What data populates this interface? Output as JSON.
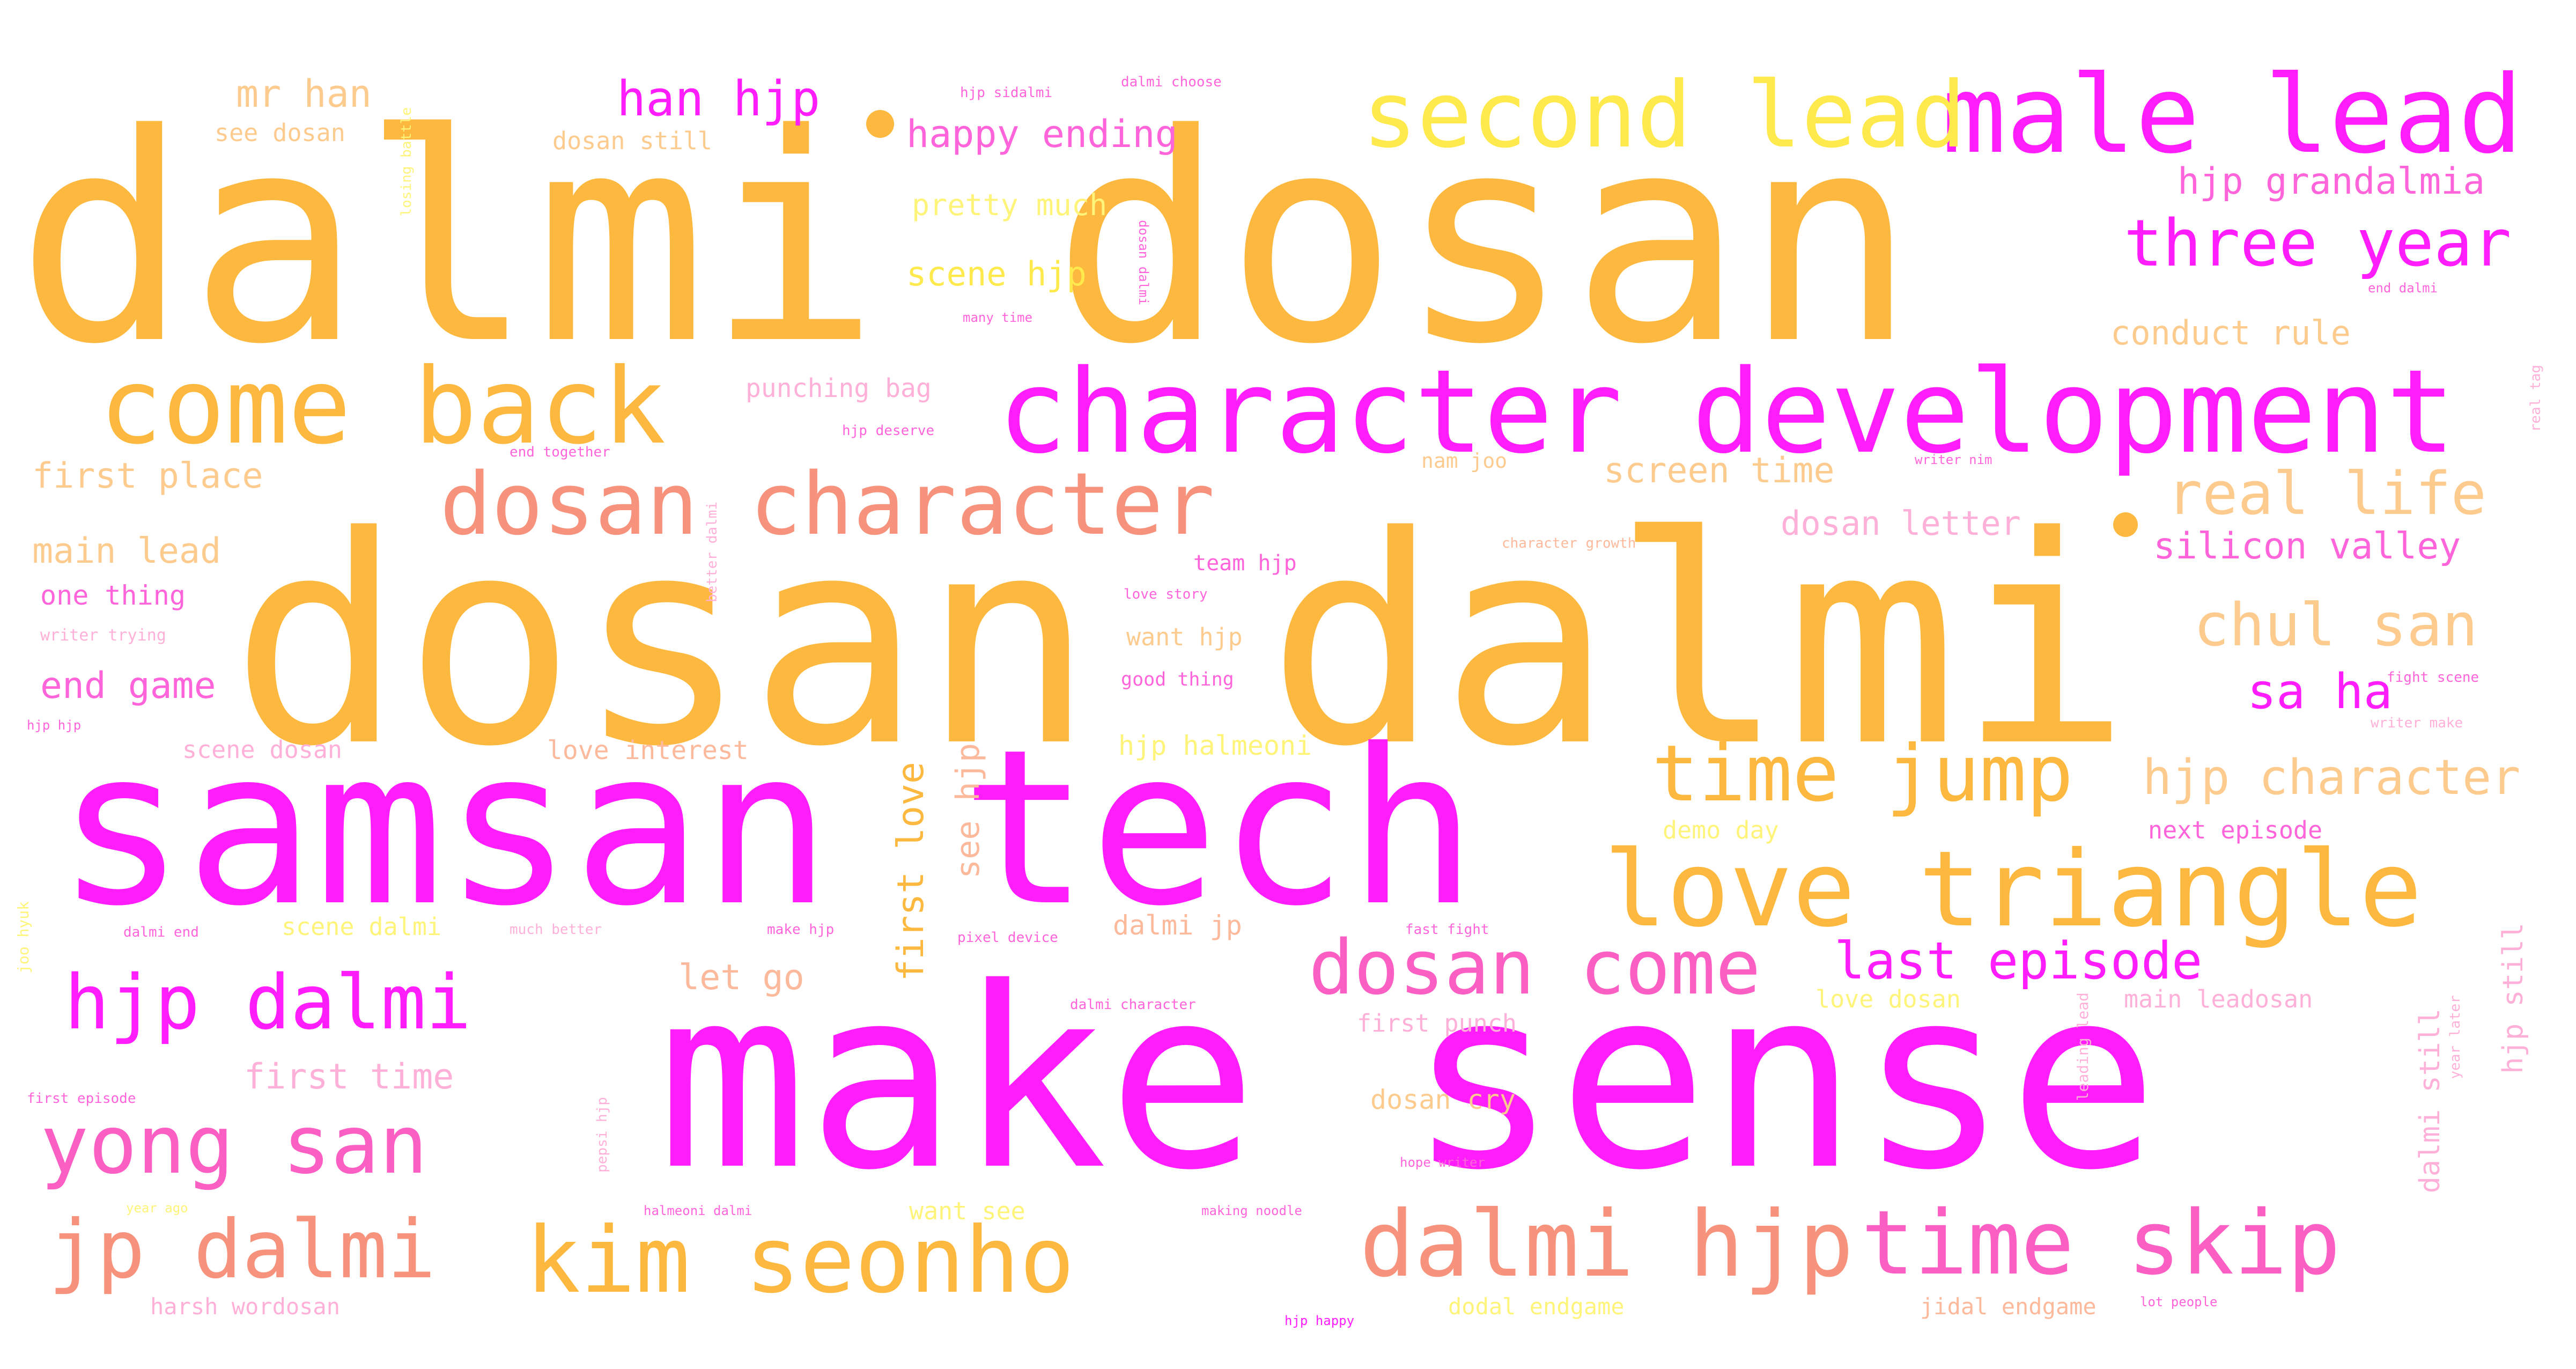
{
  "colors": {
    "orange": "#FDB93F",
    "magenta": "#FF1EFB",
    "salmon": "#F7937C",
    "pink": "#FB5FC4",
    "yellow": "#FFEA4E",
    "light_orange": "#FDCB8E",
    "light_pink": "#FFB0D8",
    "hot_pink": "#FF64DA",
    "light_yellow": "#FFF47A",
    "peach": "#FDB99B"
  },
  "words": [
    {
      "text": "dalmi dosan",
      "color": "#FDB93F"
    },
    {
      "text": "dosan dalmi",
      "color": "#FDB93F"
    },
    {
      "text": "make sense",
      "color": "#FF1EFB"
    },
    {
      "text": "samsan tech",
      "color": "#FF1EFB"
    },
    {
      "text": "character development",
      "color": "#FF1EFB"
    },
    {
      "text": "male lead",
      "color": "#FF1EFB"
    },
    {
      "text": "second lead",
      "color": "#FFEA4E"
    },
    {
      "text": "come back",
      "color": "#FDB93F"
    },
    {
      "text": "dosan character",
      "color": "#F7937C"
    },
    {
      "text": "love triangle",
      "color": "#FDB93F"
    },
    {
      "text": "time jump",
      "color": "#FDB93F"
    },
    {
      "text": "dalmi hjp",
      "color": "#F7937C"
    },
    {
      "text": "time skip",
      "color": "#FB5FC4"
    },
    {
      "text": "kim seonho",
      "color": "#FDB93F"
    },
    {
      "text": "jp dalmi",
      "color": "#F7937C"
    },
    {
      "text": "yong san",
      "color": "#FB5FC4"
    },
    {
      "text": "hjp dalmi",
      "color": "#FF1EFB"
    },
    {
      "text": "dosan come",
      "color": "#FB5FC4"
    },
    {
      "text": "three year",
      "color": "#FF1EFB"
    },
    {
      "text": "real life",
      "color": "#FDCB8E"
    },
    {
      "text": "chul san",
      "color": "#FDCB8E"
    },
    {
      "text": "hjp character",
      "color": "#FDCB8E"
    },
    {
      "text": "last episode",
      "color": "#FF1EFB"
    },
    {
      "text": "silicon valley",
      "color": "#FF64DA"
    },
    {
      "text": "hjp grandalmia",
      "color": "#FF64DA"
    },
    {
      "text": "sa ha",
      "color": "#FF1EFB"
    },
    {
      "text": "han hjp",
      "color": "#FF1EFB"
    },
    {
      "text": "mr han",
      "color": "#FDCB8E"
    },
    {
      "text": "happy ending",
      "color": "#FF64DA"
    },
    {
      "text": "pretty much",
      "color": "#FFF47A"
    },
    {
      "text": "scene hjp",
      "color": "#FFEA4E"
    },
    {
      "text": "first place",
      "color": "#FDCB8E"
    },
    {
      "text": "main lead",
      "color": "#FDCB8E"
    },
    {
      "text": "one thing",
      "color": "#FF64DA"
    },
    {
      "text": "end game",
      "color": "#FF64DA"
    },
    {
      "text": "first love",
      "color": "#FDB93F"
    },
    {
      "text": "see hjp",
      "color": "#FDB99B"
    },
    {
      "text": "let go",
      "color": "#FDB99B"
    },
    {
      "text": "first time",
      "color": "#FFB0D8"
    },
    {
      "text": "conduct rule",
      "color": "#FDCB8E"
    },
    {
      "text": "screen time",
      "color": "#FDCB8E"
    },
    {
      "text": "dosan letter",
      "color": "#FFB0D8"
    },
    {
      "text": "punching bag",
      "color": "#FFB0D8"
    },
    {
      "text": "see dosan",
      "color": "#FDCB8E"
    },
    {
      "text": "dosan still",
      "color": "#FDCB8E"
    },
    {
      "text": "love interest",
      "color": "#FDB99B"
    },
    {
      "text": "scene dosan",
      "color": "#FFB0D8"
    },
    {
      "text": "hjp halmeoni",
      "color": "#FFF47A"
    },
    {
      "text": "demo day",
      "color": "#FFF47A"
    },
    {
      "text": "next episode",
      "color": "#FF64DA"
    },
    {
      "text": "want hjp",
      "color": "#FDCB8E"
    },
    {
      "text": "team hjp",
      "color": "#FF64DA"
    },
    {
      "text": "good thing",
      "color": "#FF64DA"
    },
    {
      "text": "dalmi jp",
      "color": "#FDB99B"
    },
    {
      "text": "love dosan",
      "color": "#FFF47A"
    },
    {
      "text": "main leadosan",
      "color": "#FFB0D8"
    },
    {
      "text": "first punch",
      "color": "#FFB0D8"
    },
    {
      "text": "dosan cry",
      "color": "#FDCB8E"
    },
    {
      "text": "scene dalmi",
      "color": "#FFF47A"
    },
    {
      "text": "want see",
      "color": "#FFF47A"
    },
    {
      "text": "harsh wordosan",
      "color": "#FFB0D8"
    },
    {
      "text": "dodal endgame",
      "color": "#FFF47A"
    },
    {
      "text": "jidal endgame",
      "color": "#FDB99B"
    },
    {
      "text": "nam joo",
      "color": "#FDCB8E"
    },
    {
      "text": "hjp still",
      "color": "#FFB0D8"
    },
    {
      "text": "dalmi still",
      "color": "#FFB0D8"
    },
    {
      "text": "hjp sidalmi",
      "color": "#FF64DA"
    },
    {
      "text": "dalmi choose",
      "color": "#FF64DA"
    },
    {
      "text": "losing battle",
      "color": "#FFF47A"
    },
    {
      "text": "many time",
      "color": "#FF64DA"
    },
    {
      "text": "dosan dalmi",
      "color": "#FF64DA"
    },
    {
      "text": "end dalmi",
      "color": "#FF64DA"
    },
    {
      "text": "end together",
      "color": "#FF64DA"
    },
    {
      "text": "hjp deserve",
      "color": "#FF64DA"
    },
    {
      "text": "writer nim",
      "color": "#FF64DA"
    },
    {
      "text": "real tag",
      "color": "#FFB0D8"
    },
    {
      "text": "better dalmi",
      "color": "#FFB0D8"
    },
    {
      "text": "character growth",
      "color": "#FDB99B"
    },
    {
      "text": "love story",
      "color": "#FF64DA"
    },
    {
      "text": "writer trying",
      "color": "#FFB0D8"
    },
    {
      "text": "hjp hjp",
      "color": "#FF64DA"
    },
    {
      "text": "fight scene",
      "color": "#FF64DA"
    },
    {
      "text": "writer make",
      "color": "#FFB0D8"
    },
    {
      "text": "joo hyuk",
      "color": "#FFF47A"
    },
    {
      "text": "dalmi end",
      "color": "#FF64DA"
    },
    {
      "text": "much better",
      "color": "#FFB0D8"
    },
    {
      "text": "make hjp",
      "color": "#FF64DA"
    },
    {
      "text": "fast fight",
      "color": "#FF64DA"
    },
    {
      "text": "pixel device",
      "color": "#FF64DA"
    },
    {
      "text": "dalmi character",
      "color": "#FF64DA"
    },
    {
      "text": "first episode",
      "color": "#FF64DA"
    },
    {
      "text": "pepsi hjp",
      "color": "#FFB0D8"
    },
    {
      "text": "year ago",
      "color": "#FFF47A"
    },
    {
      "text": "halmeoni dalmi",
      "color": "#FF64DA"
    },
    {
      "text": "making noodle",
      "color": "#FF64DA"
    },
    {
      "text": "hope writer",
      "color": "#FF64DA"
    },
    {
      "text": "leading lead",
      "color": "#FFB0D8"
    },
    {
      "text": "year later",
      "color": "#FFB0D8"
    },
    {
      "text": "hjp happy",
      "color": "#FF1EFB"
    },
    {
      "text": "lot people",
      "color": "#FF64DA"
    }
  ]
}
